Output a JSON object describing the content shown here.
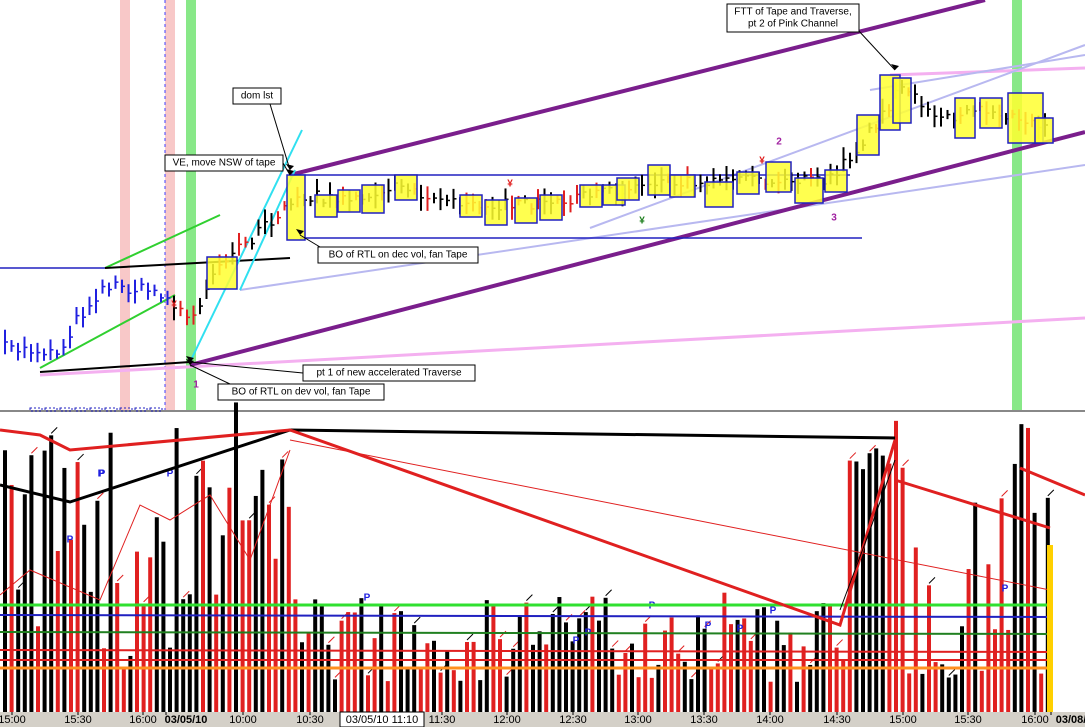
{
  "annotations": [
    {
      "lines": [
        "FTT of Tape and Traverse,",
        "pt 2 of Pink Channel"
      ]
    },
    {
      "lines": [
        "dom lst"
      ]
    },
    {
      "lines": [
        "VE, move NSW of tape"
      ]
    },
    {
      "lines": [
        "BO of RTL on dec vol, fan Tape"
      ]
    },
    {
      "lines": [
        "pt 1 of new accelerated Traverse"
      ]
    },
    {
      "lines": [
        "BO of RTL on dev vol, fan Tape"
      ]
    }
  ],
  "markers": [
    "1",
    "2",
    "3",
    "¥",
    "¥",
    "¥",
    "¥"
  ],
  "p_labels": [
    "P",
    "P",
    "P",
    "P",
    "P",
    "P",
    "P",
    "P",
    "P",
    "P",
    "P",
    "P"
  ],
  "x_labels": [
    "15:00",
    "15:30",
    "16:00",
    "03/05/10",
    "10:00",
    "10:30",
    "11:30",
    "12:00",
    "12:30",
    "13:00",
    "13:30",
    "14:00",
    "14:30",
    "15:00",
    "15:30",
    "16:00",
    "03/08/"
  ],
  "cursor_label": "03/05/10 11:10"
}
